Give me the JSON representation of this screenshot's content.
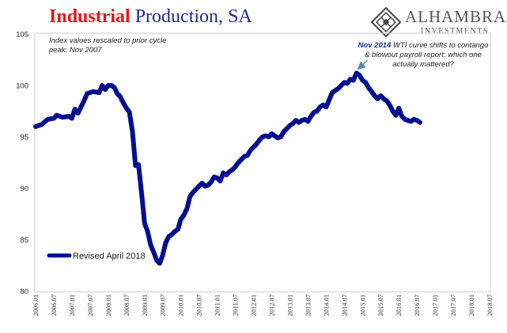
{
  "header": {
    "title_part1": "Industrial",
    "title_part2": "Production, SA"
  },
  "logo": {
    "icon": "diamond-lattice-icon",
    "brand": "ALHAMBRA",
    "sub": "INVESTMENTS"
  },
  "annotations": {
    "left_note": "Index values rescaled to prior cycle peak: Nov 2007",
    "right_note_highlight": "Nov 2014",
    "right_note_rest": " WTI curve shifts to contango & blowout payroll report; which one actually mattered?"
  },
  "colors": {
    "series": "#000f8f",
    "title_red": "#e8141b",
    "title_blue": "#1f2a8a",
    "arrow": "#5b86a8"
  },
  "chart_data": {
    "type": "line",
    "title": "Industrial Production, SA",
    "xlabel": "",
    "ylabel": "",
    "ylim": [
      80,
      105
    ],
    "yticks": [
      80,
      85,
      90,
      95,
      100,
      105
    ],
    "x_tick_labels": [
      "2006.01",
      "2006.07",
      "2007.01",
      "2007.07",
      "2008.01",
      "2008.07",
      "2009.01",
      "2009.07",
      "2010.01",
      "2010.07",
      "2011.01",
      "2011.07",
      "2012.01",
      "2012.07",
      "2013.01",
      "2013.07",
      "2014.01",
      "2014.07",
      "2015.01",
      "2015.07",
      "2016.01",
      "2016.07",
      "2017.01",
      "2017.07",
      "2018.01",
      "2018.07"
    ],
    "legend_position": "bottom-left",
    "series": [
      {
        "name": "Revised April 2018",
        "points": [
          [
            "2006-01",
            96.0
          ],
          [
            "2006-03",
            96.2
          ],
          [
            "2006-05",
            96.7
          ],
          [
            "2006-07",
            96.8
          ],
          [
            "2006-08",
            97.1
          ],
          [
            "2006-10",
            96.9
          ],
          [
            "2006-12",
            97.0
          ],
          [
            "2007-01",
            96.8
          ],
          [
            "2007-02",
            97.7
          ],
          [
            "2007-03",
            97.3
          ],
          [
            "2007-05",
            98.5
          ],
          [
            "2007-06",
            99.2
          ],
          [
            "2007-08",
            99.4
          ],
          [
            "2007-10",
            99.3
          ],
          [
            "2007-11",
            100.0
          ],
          [
            "2007-12",
            99.6
          ],
          [
            "2008-01",
            100.0
          ],
          [
            "2008-02",
            100.0
          ],
          [
            "2008-03",
            99.8
          ],
          [
            "2008-04",
            99.2
          ],
          [
            "2008-05",
            98.9
          ],
          [
            "2008-06",
            98.3
          ],
          [
            "2008-07",
            97.8
          ],
          [
            "2008-08",
            97.4
          ],
          [
            "2008-09",
            95.5
          ],
          [
            "2008-10",
            92.2
          ],
          [
            "2008-11",
            92.3
          ],
          [
            "2008-12",
            89.6
          ],
          [
            "2009-01",
            86.6
          ],
          [
            "2009-02",
            85.8
          ],
          [
            "2009-03",
            84.5
          ],
          [
            "2009-04",
            83.8
          ],
          [
            "2009-05",
            83.0
          ],
          [
            "2009-06",
            82.7
          ],
          [
            "2009-07",
            83.5
          ],
          [
            "2009-08",
            84.7
          ],
          [
            "2009-09",
            85.3
          ],
          [
            "2009-10",
            85.5
          ],
          [
            "2009-11",
            85.8
          ],
          [
            "2009-12",
            86.0
          ],
          [
            "2010-01",
            87.0
          ],
          [
            "2010-02",
            87.4
          ],
          [
            "2010-03",
            88.0
          ],
          [
            "2010-04",
            89.2
          ],
          [
            "2010-05",
            89.6
          ],
          [
            "2010-06",
            89.9
          ],
          [
            "2010-07",
            90.2
          ],
          [
            "2010-08",
            90.5
          ],
          [
            "2010-09",
            90.2
          ],
          [
            "2010-10",
            90.3
          ],
          [
            "2010-11",
            90.6
          ],
          [
            "2010-12",
            91.1
          ],
          [
            "2011-01",
            91.0
          ],
          [
            "2011-02",
            90.7
          ],
          [
            "2011-03",
            91.5
          ],
          [
            "2011-04",
            91.3
          ],
          [
            "2011-05",
            91.6
          ],
          [
            "2011-06",
            91.8
          ],
          [
            "2011-07",
            92.1
          ],
          [
            "2011-08",
            92.5
          ],
          [
            "2011-09",
            92.8
          ],
          [
            "2011-10",
            93.1
          ],
          [
            "2011-11",
            93.2
          ],
          [
            "2011-12",
            93.7
          ],
          [
            "2012-01",
            94.0
          ],
          [
            "2012-02",
            94.3
          ],
          [
            "2012-03",
            94.7
          ],
          [
            "2012-04",
            95.0
          ],
          [
            "2012-05",
            95.1
          ],
          [
            "2012-06",
            95.0
          ],
          [
            "2012-07",
            95.3
          ],
          [
            "2012-08",
            95.1
          ],
          [
            "2012-09",
            94.9
          ],
          [
            "2012-10",
            95.0
          ],
          [
            "2012-11",
            95.5
          ],
          [
            "2012-12",
            95.8
          ],
          [
            "2013-01",
            96.1
          ],
          [
            "2013-02",
            96.3
          ],
          [
            "2013-03",
            96.6
          ],
          [
            "2013-04",
            96.4
          ],
          [
            "2013-05",
            96.6
          ],
          [
            "2013-06",
            96.7
          ],
          [
            "2013-07",
            96.5
          ],
          [
            "2013-08",
            97.0
          ],
          [
            "2013-09",
            97.4
          ],
          [
            "2013-10",
            97.5
          ],
          [
            "2013-11",
            97.9
          ],
          [
            "2013-12",
            98.1
          ],
          [
            "2014-01",
            97.9
          ],
          [
            "2014-02",
            98.6
          ],
          [
            "2014-03",
            99.3
          ],
          [
            "2014-04",
            99.5
          ],
          [
            "2014-05",
            99.7
          ],
          [
            "2014-06",
            100.0
          ],
          [
            "2014-07",
            100.3
          ],
          [
            "2014-08",
            100.2
          ],
          [
            "2014-09",
            100.6
          ],
          [
            "2014-10",
            100.5
          ],
          [
            "2014-11",
            101.2
          ],
          [
            "2014-12",
            101.0
          ],
          [
            "2015-01",
            100.5
          ],
          [
            "2015-02",
            100.3
          ],
          [
            "2015-03",
            99.8
          ],
          [
            "2015-04",
            99.4
          ],
          [
            "2015-05",
            99.0
          ],
          [
            "2015-06",
            98.7
          ],
          [
            "2015-07",
            99.0
          ],
          [
            "2015-08",
            98.7
          ],
          [
            "2015-09",
            98.5
          ],
          [
            "2015-10",
            98.1
          ],
          [
            "2015-11",
            97.5
          ],
          [
            "2015-12",
            97.1
          ],
          [
            "2016-01",
            97.8
          ],
          [
            "2016-02",
            97.0
          ],
          [
            "2016-03",
            96.7
          ],
          [
            "2016-04",
            96.6
          ],
          [
            "2016-05",
            96.5
          ],
          [
            "2016-06",
            96.7
          ],
          [
            "2016-07",
            96.6
          ],
          [
            "2016-08",
            96.4
          ]
        ]
      }
    ],
    "annotation_arrow": {
      "from": "Nov 2014 note",
      "to": [
        "2014-11",
        101.2
      ]
    }
  }
}
